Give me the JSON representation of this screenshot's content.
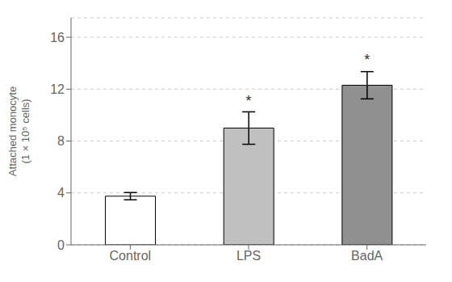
{
  "chart_data": {
    "type": "bar",
    "categories": [
      "Control",
      "LPS",
      "BadA"
    ],
    "values": [
      3.75,
      9.0,
      12.3
    ],
    "errors": [
      0.28,
      1.25,
      1.05
    ],
    "colors": [
      "#ffffff",
      "#c0c0c0",
      "#909090"
    ],
    "ylabel": "Attached monocyte\n(1 × 10⁵ cells)",
    "ylim": [
      0,
      17.5
    ],
    "yticks": [
      0,
      4,
      8,
      12,
      16
    ],
    "grid": true,
    "annotations": [
      {
        "text": "*",
        "category": "LPS",
        "y": 10.6
      },
      {
        "text": "*",
        "category": "BadA",
        "y": 13.75
      }
    ]
  }
}
